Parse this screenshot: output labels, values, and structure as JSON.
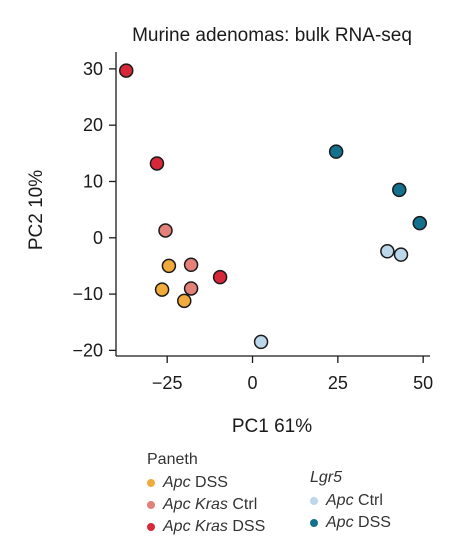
{
  "chart_data": {
    "type": "scatter",
    "title": "Murine adenomas: bulk RNA-seq",
    "xlabel": "PC1 61%",
    "ylabel": "PC2 10%",
    "xlim": [
      -40,
      52
    ],
    "ylim": [
      -21,
      33
    ],
    "xticks": [
      -25,
      0,
      25,
      50
    ],
    "xtick_labels": [
      "−25",
      "0",
      "25",
      "50"
    ],
    "yticks": [
      30,
      20,
      10,
      0,
      -10,
      -20
    ],
    "ytick_labels": [
      "30",
      "20",
      "10",
      "0",
      "−10",
      "−20"
    ],
    "grid": false,
    "legend_position": "bottom",
    "series": [
      {
        "key": "apc_dss_paneth",
        "group": "Paneth",
        "name_italic": "Apc",
        "name_plain": " DSS",
        "color": "#f0ab3c",
        "points": [
          [
            -24.5,
            -5
          ],
          [
            -26.5,
            -9.2
          ],
          [
            -20,
            -11.2
          ]
        ]
      },
      {
        "key": "apc_kras_ctrl",
        "group": "Paneth",
        "name_italic": "Apc Kras",
        "name_plain": " Ctrl",
        "color": "#e28079",
        "points": [
          [
            -25.5,
            1.3
          ],
          [
            -18,
            -4.8
          ],
          [
            -18,
            -9
          ]
        ]
      },
      {
        "key": "apc_kras_dss",
        "group": "Paneth",
        "name_italic": "Apc Kras",
        "name_plain": " DSS",
        "color": "#d62839",
        "points": [
          [
            -37,
            29.7
          ],
          [
            -28,
            13.2
          ],
          [
            -9.5,
            -7
          ]
        ]
      },
      {
        "key": "apc_ctrl_lgr5",
        "group": "Lgr5",
        "name_italic": "Apc",
        "name_plain": " Ctrl",
        "color": "#bcd6ea",
        "points": [
          [
            2.5,
            -18.5
          ],
          [
            39.5,
            -2.4
          ],
          [
            43.5,
            -3
          ]
        ]
      },
      {
        "key": "apc_dss_lgr5",
        "group": "Lgr5",
        "name_italic": "Apc",
        "name_plain": " DSS",
        "color": "#14718d",
        "points": [
          [
            24.5,
            15.3
          ],
          [
            43,
            8.5
          ],
          [
            49,
            2.6
          ]
        ]
      }
    ],
    "legend": {
      "groups": [
        {
          "title": "Paneth",
          "title_italic": false,
          "series": [
            "apc_dss_paneth",
            "apc_kras_ctrl",
            "apc_kras_dss"
          ]
        },
        {
          "title": "Lgr5",
          "title_italic": true,
          "series": [
            "apc_ctrl_lgr5",
            "apc_dss_lgr5"
          ]
        }
      ]
    }
  }
}
